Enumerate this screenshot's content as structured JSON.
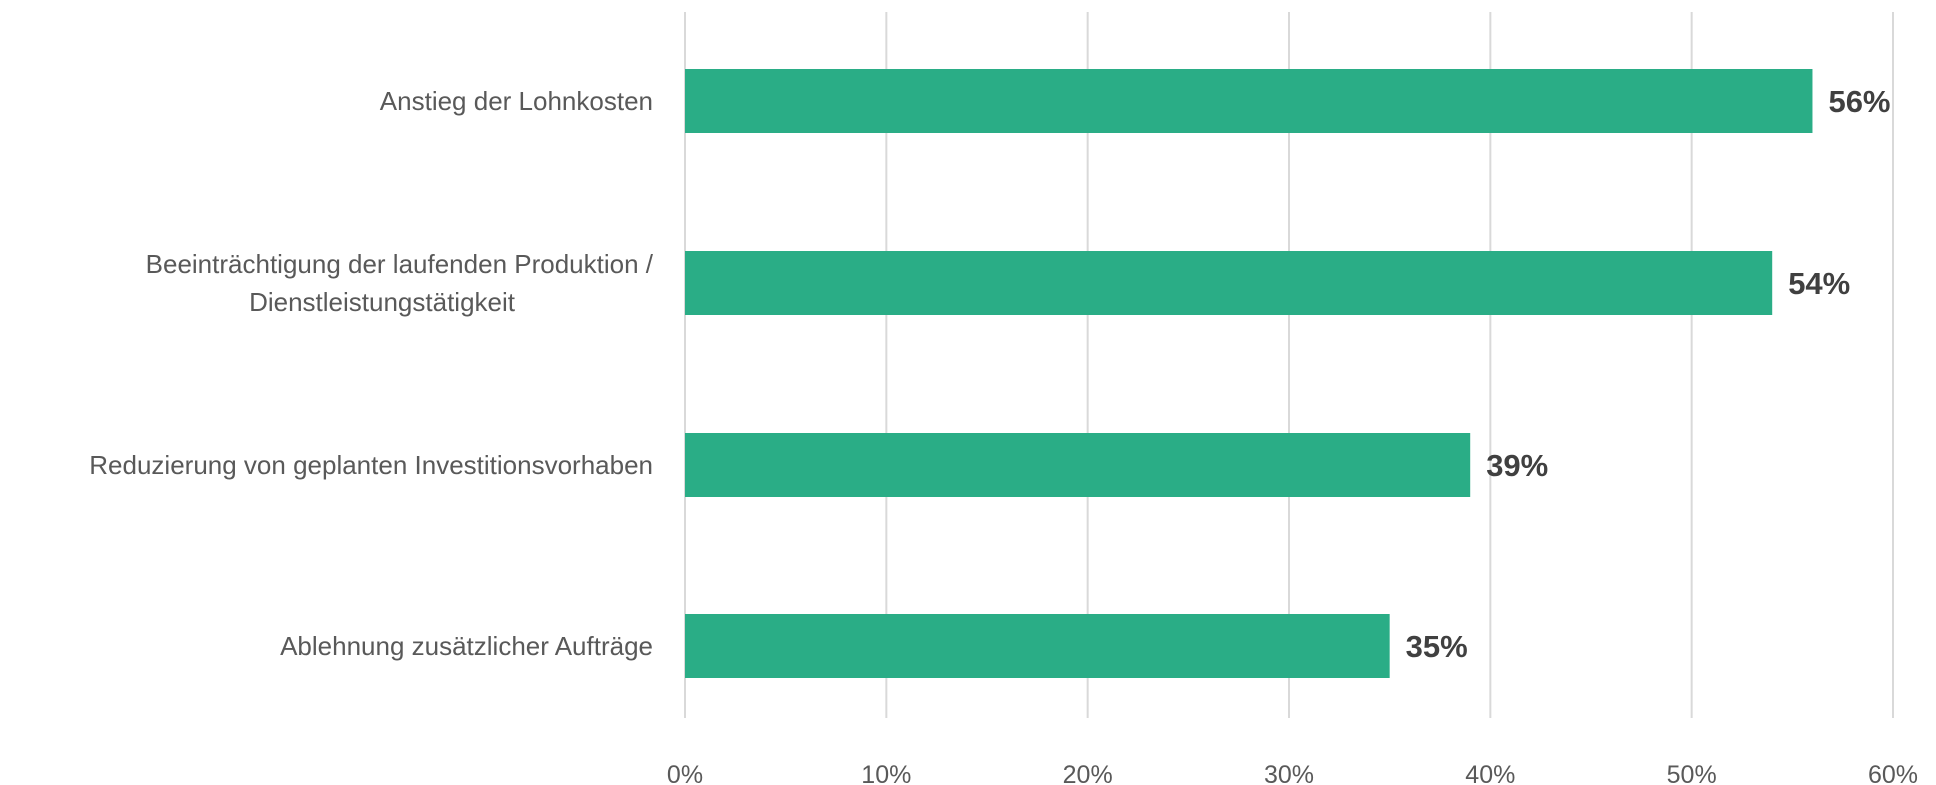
{
  "chart_data": {
    "type": "bar",
    "orientation": "horizontal",
    "categories": [
      [
        "Anstieg der Lohnkosten"
      ],
      [
        "Beeinträchtigung der laufenden Produktion /",
        "Dienstleistungstätigkeit"
      ],
      [
        "Reduzierung von geplanten Investitionsvorhaben"
      ],
      [
        "Ablehnung zusätzlicher Aufträge"
      ]
    ],
    "values": [
      56,
      54,
      39,
      35
    ],
    "value_labels": [
      "56%",
      "54%",
      "39%",
      "35%"
    ],
    "xlim": [
      0,
      60
    ],
    "x_ticks": [
      0,
      10,
      20,
      30,
      40,
      50,
      60
    ],
    "x_tick_labels": [
      "0%",
      "10%",
      "20%",
      "30%",
      "40%",
      "50%",
      "60%"
    ],
    "bar_color": "#2aad86",
    "grid": true,
    "legend": "none",
    "title": "",
    "xlabel": "",
    "ylabel": ""
  }
}
